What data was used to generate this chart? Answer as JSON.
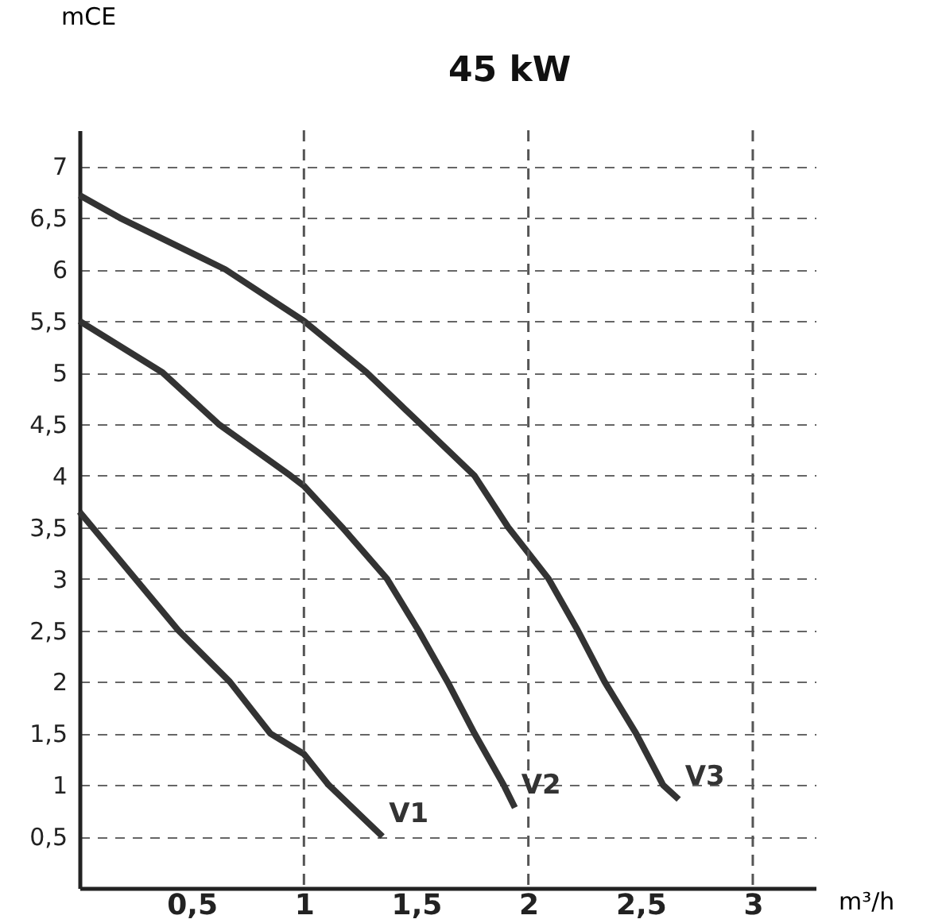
{
  "chart_data": {
    "type": "line",
    "title": "45 kW",
    "xlabel": "m³/h",
    "ylabel": "mCE",
    "xlim": [
      0,
      3.28
    ],
    "ylim": [
      0,
      7.35
    ],
    "xticks": [
      {
        "value": 0.5,
        "label": "0,5"
      },
      1,
      {
        "value": 1.5,
        "label": "1,5"
      },
      2,
      {
        "value": 2.5,
        "label": "2,5"
      },
      3
    ],
    "yticks": [
      {
        "value": 0.5,
        "label": "0,5"
      },
      1,
      {
        "value": 1.5,
        "label": "1,5"
      },
      2,
      {
        "value": 2.5,
        "label": "2,5"
      },
      3,
      {
        "value": 3.5,
        "label": "3,5"
      },
      4,
      {
        "value": 4.5,
        "label": "4,5"
      },
      5,
      {
        "value": 5.5,
        "label": "5,5"
      },
      6,
      {
        "value": 6.5,
        "label": "6,5"
      },
      7
    ],
    "grid": "y",
    "legend": false,
    "marker": "none",
    "line_style": "solid",
    "ref_lines": [
      {
        "axis": "x",
        "value": 1,
        "line_style": "dashed",
        "color": "#555555"
      },
      {
        "axis": "x",
        "value": 2,
        "line_style": "dashed",
        "color": "#555555"
      },
      {
        "axis": "x",
        "value": 3,
        "line_style": "dashed",
        "color": "#555555"
      }
    ],
    "series": [
      {
        "name": "V1",
        "color": "#333333",
        "x": [
          0,
          0.44,
          0.67,
          0.85,
          1,
          1.11,
          1.35
        ],
        "values": [
          3.65,
          2.5,
          2,
          1.5,
          1.3,
          1,
          0.5
        ]
      },
      {
        "name": "V2",
        "color": "#333333",
        "x": [
          0,
          0.37,
          0.62,
          0.94,
          1,
          1.17,
          1.37,
          1.51,
          1.64,
          1.76,
          1.89,
          1.94
        ],
        "values": [
          5.5,
          5,
          4.5,
          4,
          3.9,
          3.5,
          3,
          2.5,
          2,
          1.5,
          1,
          0.78
        ]
      },
      {
        "name": "V3",
        "color": "#333333",
        "x": [
          0,
          0.18,
          0.65,
          1,
          1.28,
          1.52,
          1.76,
          1.91,
          2.09,
          2.22,
          2.34,
          2.48,
          2.6,
          2.67
        ],
        "values": [
          6.72,
          6.5,
          6,
          5.5,
          5,
          4.5,
          4,
          3.5,
          3,
          2.5,
          2,
          1.5,
          1,
          0.86
        ]
      }
    ]
  }
}
